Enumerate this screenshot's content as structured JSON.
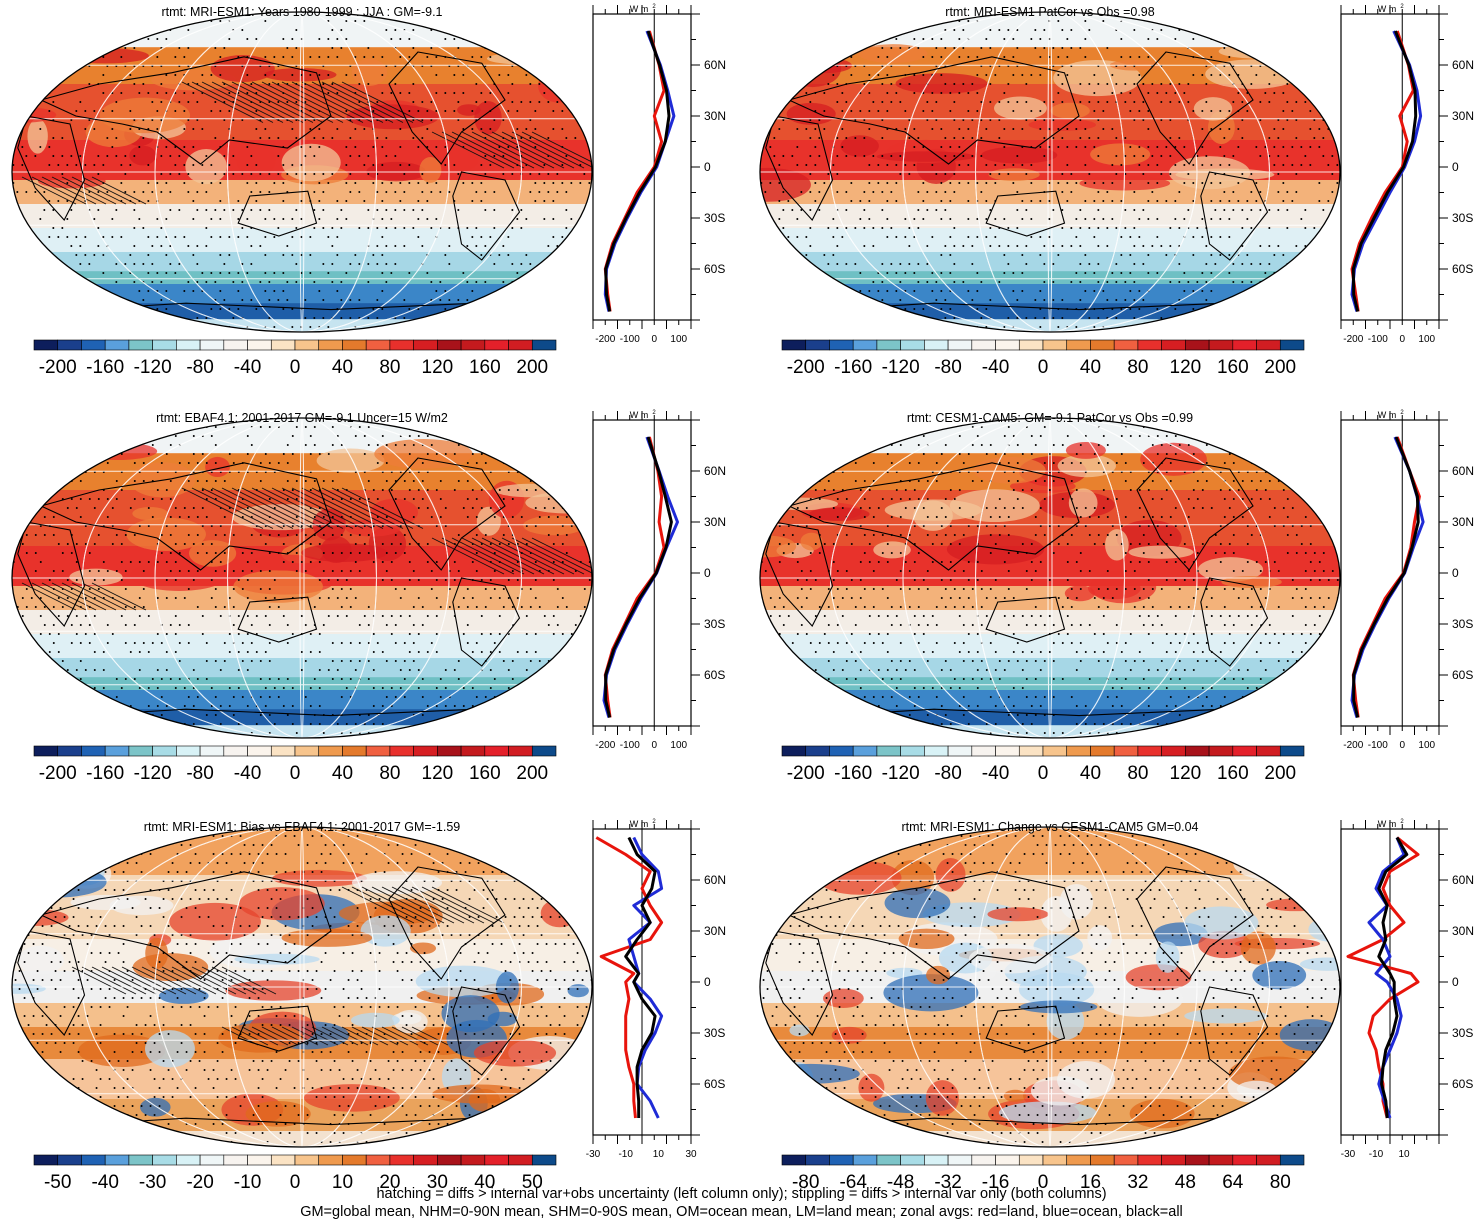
{
  "chart_data": [
    {
      "type": "heatmap",
      "title": "rtmt: MRI-ESM1: Years 1980-1999 : JJA : GM=-9.1",
      "projection": "Robinson, Pacific-centered",
      "overlays": [
        "hatching",
        "stippling"
      ],
      "colorbar": {
        "ticks": [
          "-200",
          "-160",
          "-120",
          "-80",
          "-40",
          "0",
          "40",
          "80",
          "120",
          "160",
          "200"
        ],
        "range": [
          -220,
          220
        ]
      },
      "zonal_profile": {
        "y_unit_label": "W m",
        "x_ticks": [
          "-200",
          "-100",
          "0",
          "100"
        ],
        "y_ticks": [
          "60N",
          "30N",
          "0",
          "30S",
          "60S"
        ],
        "xlim": [
          -250,
          150
        ],
        "lat": [
          80,
          60,
          45,
          30,
          15,
          0,
          -15,
          -30,
          -45,
          -60,
          -75,
          -85
        ],
        "series": [
          {
            "color": "#e8140c",
            "values": [
              -20,
              20,
              40,
              0,
              30,
              0,
              -70,
              -120,
              -170,
              -200,
              -190,
              -180
            ]
          },
          {
            "color": "#1f2bd6",
            "values": [
              -30,
              25,
              55,
              80,
              45,
              10,
              -55,
              -110,
              -160,
              -195,
              -200,
              -185
            ]
          },
          {
            "color": "#000000",
            "values": [
              -25,
              22,
              50,
              60,
              45,
              5,
              -60,
              -115,
              -165,
              -198,
              -195,
              -182
            ]
          }
        ]
      }
    },
    {
      "type": "heatmap",
      "title": "rtmt: MRI-ESM1 PatCor vs Obs =0.98",
      "projection": "Robinson, Pacific-centered",
      "overlays": [
        "stippling"
      ],
      "colorbar": {
        "ticks": [
          "-200",
          "-160",
          "-120",
          "-80",
          "-40",
          "0",
          "40",
          "80",
          "120",
          "160",
          "200"
        ],
        "range": [
          -220,
          220
        ]
      },
      "zonal_profile": {
        "y_unit_label": "W m",
        "x_ticks": [
          "-200",
          "-100",
          "0",
          "100"
        ],
        "y_ticks": [
          "60N",
          "30N",
          "0",
          "30S",
          "60S"
        ],
        "xlim": [
          -250,
          150
        ],
        "lat": [
          80,
          60,
          45,
          30,
          15,
          0,
          -15,
          -30,
          -45,
          -60,
          -75,
          -85
        ],
        "series": [
          {
            "color": "#e8140c",
            "values": [
              -20,
              25,
              45,
              -10,
              20,
              0,
              -70,
              -125,
              -175,
              -205,
              -190,
              -180
            ]
          },
          {
            "color": "#1f2bd6",
            "values": [
              -35,
              30,
              60,
              75,
              50,
              10,
              -50,
              -105,
              -160,
              -195,
              -205,
              -185
            ]
          },
          {
            "color": "#000000",
            "values": [
              -28,
              27,
              52,
              55,
              42,
              5,
              -60,
              -115,
              -168,
              -200,
              -198,
              -182
            ]
          }
        ]
      }
    },
    {
      "type": "heatmap",
      "title": "rtmt: EBAF4.1: 2001-2017 GM=-9.1 Uncer=15 W/m2",
      "projection": "Robinson, Pacific-centered",
      "overlays": [
        "hatching",
        "stippling"
      ],
      "colorbar": {
        "ticks": [
          "-200",
          "-160",
          "-120",
          "-80",
          "-40",
          "0",
          "40",
          "80",
          "120",
          "160",
          "200"
        ],
        "range": [
          -220,
          220
        ]
      },
      "zonal_profile": {
        "y_unit_label": "W m",
        "x_ticks": [
          "-200",
          "-100",
          "0",
          "100"
        ],
        "y_ticks": [
          "60N",
          "30N",
          "0",
          "30S",
          "60S"
        ],
        "xlim": [
          -250,
          150
        ],
        "lat": [
          80,
          60,
          45,
          30,
          15,
          0,
          -15,
          -30,
          -45,
          -60,
          -75,
          -85
        ],
        "series": [
          {
            "color": "#e8140c",
            "values": [
              -20,
              15,
              30,
              20,
              40,
              5,
              -70,
              -120,
              -170,
              -200,
              -190,
              -180
            ]
          },
          {
            "color": "#1f2bd6",
            "values": [
              -30,
              20,
              55,
              95,
              50,
              10,
              -55,
              -110,
              -160,
              -195,
              -205,
              -185
            ]
          },
          {
            "color": "#000000",
            "values": [
              -25,
              18,
              45,
              70,
              48,
              8,
              -60,
              -115,
              -165,
              -198,
              -198,
              -182
            ]
          }
        ]
      }
    },
    {
      "type": "heatmap",
      "title": "rtmt: CESM1-CAM5: GM=-9.1 PatCor vs Obs =0.99",
      "projection": "Robinson, Pacific-centered",
      "overlays": [
        "stippling"
      ],
      "colorbar": {
        "ticks": [
          "-200",
          "-160",
          "-120",
          "-80",
          "-40",
          "0",
          "40",
          "80",
          "120",
          "160",
          "200"
        ],
        "range": [
          -220,
          220
        ]
      },
      "zonal_profile": {
        "y_unit_label": "W m",
        "x_ticks": [
          "-200",
          "-100",
          "0",
          "100"
        ],
        "y_ticks": [
          "60N",
          "30N",
          "0",
          "30S",
          "60S"
        ],
        "xlim": [
          -250,
          150
        ],
        "lat": [
          80,
          60,
          45,
          30,
          15,
          0,
          -15,
          -30,
          -45,
          -60,
          -75,
          -85
        ],
        "series": [
          {
            "color": "#e8140c",
            "values": [
              -20,
              30,
              70,
              50,
              35,
              5,
              -70,
              -120,
              -170,
              -200,
              -190,
              -180
            ]
          },
          {
            "color": "#1f2bd6",
            "values": [
              -30,
              30,
              60,
              85,
              45,
              10,
              -55,
              -110,
              -160,
              -195,
              -205,
              -185
            ]
          },
          {
            "color": "#000000",
            "values": [
              -25,
              30,
              62,
              65,
              40,
              8,
              -60,
              -115,
              -165,
              -198,
              -198,
              -182
            ]
          }
        ]
      }
    },
    {
      "type": "heatmap",
      "title": "rtmt: MRI-ESM1: Bias vs EBAF4.1: 2001-2017 GM=-1.59",
      "projection": "Robinson, Pacific-centered",
      "overlays": [
        "hatching",
        "stippling"
      ],
      "colorbar": {
        "ticks": [
          "-50",
          "-40",
          "-30",
          "-20",
          "-10",
          "0",
          "10",
          "20",
          "30",
          "40",
          "50"
        ],
        "range": [
          -55,
          55
        ]
      },
      "zonal_profile": {
        "y_unit_label": "W m",
        "x_ticks": [
          "-30",
          "-10",
          "10",
          "30"
        ],
        "y_ticks": [
          "60N",
          "30N",
          "0",
          "30S",
          "60S"
        ],
        "xlim": [
          -30,
          30
        ],
        "lat": [
          85,
          75,
          65,
          55,
          45,
          35,
          25,
          15,
          5,
          0,
          -10,
          -20,
          -30,
          -40,
          -50,
          -60,
          -70,
          -80
        ],
        "series": [
          {
            "color": "#e8140c",
            "values": [
              -28,
              -10,
              5,
              0,
              5,
              12,
              5,
              -25,
              -5,
              -10,
              -8,
              -10,
              -10,
              -10,
              -8,
              -5,
              -5,
              -4
            ]
          },
          {
            "color": "#1f2bd6",
            "values": [
              -5,
              0,
              10,
              12,
              -5,
              5,
              -8,
              -5,
              -2,
              -5,
              5,
              12,
              8,
              2,
              -2,
              -3,
              5,
              10
            ]
          },
          {
            "color": "#000000",
            "values": [
              -8,
              -3,
              8,
              6,
              0,
              5,
              -3,
              -10,
              -2,
              -5,
              0,
              8,
              6,
              0,
              -3,
              -3,
              -2,
              -2
            ]
          }
        ]
      }
    },
    {
      "type": "heatmap",
      "title": "rtmt: MRI-ESM1: Change vs CESM1-CAM5 GM=0.04",
      "projection": "Robinson, Pacific-centered",
      "overlays": [
        "stippling"
      ],
      "colorbar": {
        "ticks": [
          "-80",
          "-64",
          "-48",
          "-32",
          "-16",
          "0",
          "16",
          "32",
          "48",
          "64",
          "80"
        ],
        "range": [
          -88,
          88
        ]
      },
      "zonal_profile": {
        "y_unit_label": "W m",
        "x_ticks": [
          "-30",
          "-10",
          "10"
        ],
        "y_ticks": [
          "60N",
          "30N",
          "0",
          "30S",
          "60S"
        ],
        "xlim": [
          -35,
          35
        ],
        "lat": [
          85,
          75,
          65,
          55,
          45,
          35,
          25,
          15,
          5,
          0,
          -10,
          -20,
          -30,
          -40,
          -50,
          -60,
          -70,
          -80
        ],
        "series": [
          {
            "color": "#e8140c",
            "values": [
              5,
              20,
              0,
              -5,
              0,
              10,
              -5,
              -30,
              15,
              20,
              0,
              -12,
              -15,
              -10,
              -8,
              -5,
              -5,
              -2
            ]
          },
          {
            "color": "#1f2bd6",
            "values": [
              5,
              10,
              -5,
              -10,
              -2,
              -15,
              -5,
              0,
              -10,
              -2,
              5,
              8,
              5,
              0,
              -5,
              -8,
              -4,
              0
            ]
          },
          {
            "color": "#000000",
            "values": [
              5,
              12,
              -3,
              -8,
              -2,
              -5,
              -3,
              -8,
              0,
              3,
              3,
              5,
              2,
              -3,
              -5,
              -6,
              -3,
              -2
            ]
          }
        ]
      }
    }
  ],
  "footer": {
    "line1": "hatching = diffs > internal var+obs uncertainty (left column only); stippling = diffs > internal var only (both columns)",
    "line2": "GM=global mean, NHM=0-90N mean, SHM=0-90S mean, OM=ocean mean, LM=land mean; zonal avgs: red=land, blue=ocean, black=all"
  }
}
